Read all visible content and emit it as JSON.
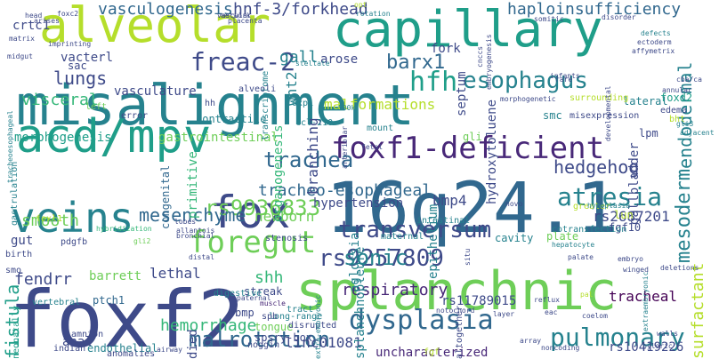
{
  "colors": {
    "background": "#ffffff",
    "palette": [
      "#440154",
      "#482878",
      "#3e4a89",
      "#31688e",
      "#26828e",
      "#1f9e89",
      "#35b779",
      "#6ece58",
      "#b5de2b",
      "#fde725"
    ]
  },
  "words": [
    {
      "text": "misalignment",
      "color": "#26828e",
      "vertical": false
    },
    {
      "text": "16q24.1",
      "color": "#31688e",
      "vertical": false
    },
    {
      "text": "foxf2",
      "color": "#3e4a89",
      "vertical": false
    },
    {
      "text": "splanchnic",
      "color": "#6ece58",
      "vertical": false
    },
    {
      "text": "capillary",
      "color": "#1f9e89",
      "vertical": false
    },
    {
      "text": "alveolar",
      "color": "#b5de2b",
      "vertical": false
    },
    {
      "text": "acd/mpv",
      "color": "#1f9e89",
      "vertical": false
    },
    {
      "text": "veins",
      "color": "#26828e",
      "vertical": false
    },
    {
      "text": "fox",
      "color": "#3e4a89",
      "vertical": false
    },
    {
      "text": "foxf1-deficient",
      "color": "#482878",
      "vertical": false
    },
    {
      "text": "foregut",
      "color": "#6ece58",
      "vertical": false
    },
    {
      "text": "dysplasia",
      "color": "#31688e",
      "vertical": false
    },
    {
      "text": "pulmonary",
      "color": "#26828e",
      "vertical": false
    },
    {
      "text": "transversum",
      "color": "#3e4a89",
      "vertical": false
    },
    {
      "text": "freac-2",
      "color": "#3e4a89",
      "vertical": false
    },
    {
      "text": "hfh",
      "color": "#1f9e89",
      "vertical": false
    },
    {
      "text": "esophagus",
      "color": "#26828e",
      "vertical": false
    },
    {
      "text": "atresia",
      "color": "#26828e",
      "vertical": false
    },
    {
      "text": "rs9257809",
      "color": "#3e4a89",
      "vertical": false
    },
    {
      "text": "malrotation",
      "color": "#31688e",
      "vertical": false
    },
    {
      "text": "sonic",
      "color": "#26828e",
      "vertical": false
    },
    {
      "text": "mesoderm",
      "color": "#26828e",
      "vertical": true
    },
    {
      "text": "rs9936833",
      "color": "#6ece58",
      "vertical": false
    },
    {
      "text": "endodermal",
      "color": "#26828e",
      "vertical": true
    },
    {
      "text": "trachea",
      "color": "#31688e",
      "vertical": false
    },
    {
      "text": "respiratory",
      "color": "#482878",
      "vertical": false
    },
    {
      "text": "mesenchyme",
      "color": "#31688e",
      "vertical": false
    },
    {
      "text": "hedgehog",
      "color": "#3e4a89",
      "vertical": false
    },
    {
      "text": "surfactant",
      "color": "#b5de2b",
      "vertical": true
    },
    {
      "text": "fistula",
      "color": "#1f9e89",
      "vertical": true
    },
    {
      "text": "shh",
      "color": "#35b779",
      "vertical": false
    },
    {
      "text": "barx1",
      "color": "#31688e",
      "vertical": false
    },
    {
      "text": "tracheo-esophageal",
      "color": "#31688e",
      "vertical": false
    },
    {
      "text": "hemorrhage",
      "color": "#35b779",
      "vertical": false
    },
    {
      "text": "lungs",
      "color": "#3e4a89",
      "vertical": false
    },
    {
      "text": "fendrr",
      "color": "#3e4a89",
      "vertical": false
    },
    {
      "text": "hnf-3/forkhead",
      "color": "#3e4a89",
      "vertical": false
    },
    {
      "text": "vasculogenesis",
      "color": "#31688e",
      "vertical": false
    },
    {
      "text": "haploinsufficiency",
      "color": "#31688e",
      "vertical": false
    },
    {
      "text": "vacterl",
      "color": "#3e4a89",
      "vertical": false
    },
    {
      "text": "visceral",
      "color": "#35b779",
      "vertical": false
    },
    {
      "text": "vasculature",
      "color": "#3e4a89",
      "vertical": false
    },
    {
      "text": "gall",
      "color": "#26828e",
      "vertical": false
    },
    {
      "text": "arose",
      "color": "#3e4a89",
      "vertical": false
    },
    {
      "text": "fork",
      "color": "#3e4a89",
      "vertical": false
    },
    {
      "text": "lethal",
      "color": "#3e4a89",
      "vertical": false
    },
    {
      "text": "tracheal",
      "color": "#440154",
      "vertical": false
    },
    {
      "text": "newborn",
      "color": "#6ece58",
      "vertical": false
    },
    {
      "text": "bmp4",
      "color": "#3e4a89",
      "vertical": false
    },
    {
      "text": "hypertension",
      "color": "#3e4a89",
      "vertical": false
    },
    {
      "text": "smooth",
      "color": "#6ece58",
      "vertical": false
    },
    {
      "text": "gut",
      "color": "#3e4a89",
      "vertical": false
    },
    {
      "text": "linc01081",
      "color": "#3e4a89",
      "vertical": false
    },
    {
      "text": "uncharacterized",
      "color": "#482878",
      "vertical": false
    },
    {
      "text": "rs2687201",
      "color": "#3e4a89",
      "vertical": false
    },
    {
      "text": "rs11789015",
      "color": "#3e4a89",
      "vertical": false
    },
    {
      "text": "rs10419226",
      "color": "#3e4a89",
      "vertical": false
    },
    {
      "text": "branching",
      "color": "#3e4a89",
      "vertical": true
    },
    {
      "text": "wnt2",
      "color": "#26828e",
      "vertical": true
    },
    {
      "text": "organogenesis",
      "color": "#35b779",
      "vertical": true
    },
    {
      "text": "malformations",
      "color": "#b5de2b",
      "vertical": false
    },
    {
      "text": "septum",
      "color": "#3e4a89",
      "vertical": true
    },
    {
      "text": "gallbladder",
      "color": "#3e4a89",
      "vertical": true
    },
    {
      "text": "gastrointestinal",
      "color": "#6ece58",
      "vertical": false
    },
    {
      "text": "morphogenesis",
      "color": "#1f9e89",
      "vertical": false
    },
    {
      "text": "crtc1",
      "color": "#3e4a89",
      "vertical": false
    },
    {
      "text": "lateral",
      "color": "#26828e",
      "vertical": false
    },
    {
      "text": "foxd2",
      "color": "#1f9e89",
      "vertical": false
    },
    {
      "text": "lpm",
      "color": "#3e4a89",
      "vertical": false
    },
    {
      "text": "fgf10",
      "color": "#3e4a89",
      "vertical": false
    },
    {
      "text": "sac",
      "color": "#3e4a89",
      "vertical": false
    },
    {
      "text": "primitive",
      "color": "#35b779",
      "vertical": true
    },
    {
      "text": "congenital",
      "color": "#31688e",
      "vertical": true
    },
    {
      "text": "anal",
      "color": "#3e4a89",
      "vertical": false
    },
    {
      "text": "barrett",
      "color": "#6ece58",
      "vertical": false
    },
    {
      "text": "ptch1",
      "color": "#31688e",
      "vertical": false
    },
    {
      "text": "bmp",
      "color": "#3e4a89",
      "vertical": false
    },
    {
      "text": "streak",
      "color": "#3e4a89",
      "vertical": false
    },
    {
      "text": "contractile",
      "color": "#26828e",
      "vertical": false
    },
    {
      "text": "smc",
      "color": "#26828e",
      "vertical": false
    },
    {
      "text": "lun",
      "color": "#b5de2b",
      "vertical": false
    },
    {
      "text": "gli",
      "color": "#6ece58",
      "vertical": false
    },
    {
      "text": "plate",
      "color": "#6ece58",
      "vertical": false
    },
    {
      "text": "cavity",
      "color": "#26828e",
      "vertical": false
    },
    {
      "text": "maternal",
      "color": "#26828e",
      "vertical": false
    },
    {
      "text": "intestinal",
      "color": "#26828e",
      "vertical": false
    },
    {
      "text": "epithelium",
      "color": "#26828e",
      "vertical": true
    },
    {
      "text": "aglossia",
      "color": "#26828e",
      "vertical": true
    },
    {
      "text": "splanchnopleure",
      "color": "#26828e",
      "vertical": true
    },
    {
      "text": "hydroxytoluene",
      "color": "#3e4a89",
      "vertical": true
    },
    {
      "text": "endothelial",
      "color": "#26828e",
      "vertical": false
    },
    {
      "text": "died",
      "color": "#3e4a89",
      "vertical": true
    },
    {
      "text": "spsry-box",
      "color": "#3e4a89",
      "vertical": false
    },
    {
      "text": "tongue",
      "color": "#6ece58",
      "vertical": false
    },
    {
      "text": "noggin",
      "color": "#3e4a89",
      "vertical": false
    },
    {
      "text": "long-range",
      "color": "#26828e",
      "vertical": false
    },
    {
      "text": "disrupted",
      "color": "#3e4a89",
      "vertical": false
    },
    {
      "text": "tract",
      "color": "#26828e",
      "vertical": false
    },
    {
      "text": "muscle",
      "color": "#482878",
      "vertical": false
    },
    {
      "text": "digestive",
      "color": "#26828e",
      "vertical": false
    },
    {
      "text": "paternal",
      "color": "#3e4a89",
      "vertical": false
    },
    {
      "text": "amnion",
      "color": "#3e4a89",
      "vertical": false
    },
    {
      "text": "indian",
      "color": "#3e4a89",
      "vertical": false
    },
    {
      "text": "anomalies",
      "color": "#3e4a89",
      "vertical": false
    },
    {
      "text": "neonatally",
      "color": "#1f9e89",
      "vertical": true
    },
    {
      "text": "vertebral",
      "color": "#26828e",
      "vertical": false
    },
    {
      "text": "smo",
      "color": "#3e4a89",
      "vertical": false
    },
    {
      "text": "birth",
      "color": "#3e4a89",
      "vertical": false
    },
    {
      "text": "foxl1",
      "color": "#b5de2b",
      "vertical": false
    },
    {
      "text": "lobes",
      "color": "#3e4a89",
      "vertical": false
    },
    {
      "text": "bronchial",
      "color": "#3e4a89",
      "vertical": false
    },
    {
      "text": "allantois",
      "color": "#3e4a89",
      "vertical": false
    },
    {
      "text": "hybridization",
      "color": "#35b779",
      "vertical": false
    },
    {
      "text": "stenosis",
      "color": "#3e4a89",
      "vertical": false
    },
    {
      "text": "distal",
      "color": "#3e4a89",
      "vertical": false
    },
    {
      "text": "gli2",
      "color": "#6ece58",
      "vertical": false
    },
    {
      "text": "pdgfb",
      "color": "#3e4a89",
      "vertical": false
    },
    {
      "text": "gastrulation",
      "color": "#26828e",
      "vertical": true
    },
    {
      "text": "tracheoesophageal",
      "color": "#26828e",
      "vertical": true
    },
    {
      "text": "left",
      "color": "#6ece58",
      "vertical": false
    },
    {
      "text": "error",
      "color": "#3e4a89",
      "vertical": false
    },
    {
      "text": "transcriptome",
      "color": "#26828e",
      "vertical": true
    },
    {
      "text": "hh",
      "color": "#3e4a89",
      "vertical": false
    },
    {
      "text": "foxp1",
      "color": "#26828e",
      "vertical": false
    },
    {
      "text": "alveoli",
      "color": "#3e4a89",
      "vertical": false
    },
    {
      "text": "ccl-210",
      "color": "#26828e",
      "vertical": false
    },
    {
      "text": "500k",
      "color": "#26828e",
      "vertical": false
    },
    {
      "text": "arteriolar",
      "color": "#3e4a89",
      "vertical": true
    },
    {
      "text": "mount",
      "color": "#26828e",
      "vertical": false
    },
    {
      "text": "fetal",
      "color": "#3e4a89",
      "vertical": false
    },
    {
      "text": "stellate",
      "color": "#26828e",
      "vertical": false
    },
    {
      "text": "vascular",
      "color": "#3e4a89",
      "vertical": false
    },
    {
      "text": "network",
      "color": "#3e4a89",
      "vertical": false
    },
    {
      "text": "placenta",
      "color": "#3e4a89",
      "vertical": false
    },
    {
      "text": "arises",
      "color": "#3e4a89",
      "vertical": false
    },
    {
      "text": "head",
      "color": "#3e4a89",
      "vertical": false
    },
    {
      "text": "foxc2",
      "color": "#3e4a89",
      "vertical": false
    },
    {
      "text": "matrix",
      "color": "#3e4a89",
      "vertical": false
    },
    {
      "text": "imprinting",
      "color": "#3e4a89",
      "vertical": false
    },
    {
      "text": "midgut",
      "color": "#3e4a89",
      "vertical": false
    },
    {
      "text": "opt",
      "color": "#b5de2b",
      "vertical": false
    },
    {
      "text": "rotation",
      "color": "#26828e",
      "vertical": false
    },
    {
      "text": "cnccs",
      "color": "#3e4a89",
      "vertical": true
    },
    {
      "text": "embryogenesis",
      "color": "#3e4a89",
      "vertical": true
    },
    {
      "text": "somitic",
      "color": "#3e4a89",
      "vertical": false
    },
    {
      "text": "disorder",
      "color": "#3e4a89",
      "vertical": false
    },
    {
      "text": "ectoderm",
      "color": "#3e4a89",
      "vertical": false
    },
    {
      "text": "defects",
      "color": "#26828e",
      "vertical": false
    },
    {
      "text": "affymetrix",
      "color": "#3e4a89",
      "vertical": false
    },
    {
      "text": "annular",
      "color": "#3e4a89",
      "vertical": false
    },
    {
      "text": "infants",
      "color": "#3e4a89",
      "vertical": false
    },
    {
      "text": "rare",
      "color": "#3e4a89",
      "vertical": false
    },
    {
      "text": "morphogenetic",
      "color": "#3e4a89",
      "vertical": false
    },
    {
      "text": "surrounding",
      "color": "#b5de2b",
      "vertical": false
    },
    {
      "text": "misexpression",
      "color": "#3e4a89",
      "vertical": false
    },
    {
      "text": "cba/ca",
      "color": "#3e4a89",
      "vertical": false
    },
    {
      "text": "edema",
      "color": "#3e4a89",
      "vertical": false
    },
    {
      "text": "bht",
      "color": "#b5de2b",
      "vertical": false
    },
    {
      "text": "gli3",
      "color": "#26828e",
      "vertical": false
    },
    {
      "text": "adjacent",
      "color": "#26828e",
      "vertical": false
    },
    {
      "text": "developmental",
      "color": "#3e4a89",
      "vertical": true
    },
    {
      "text": "novo",
      "color": "#3e4a89",
      "vertical": false
    },
    {
      "text": "cotransfection",
      "color": "#26828e",
      "vertical": false
    },
    {
      "text": "greater",
      "color": "#b5de2b",
      "vertical": false
    },
    {
      "text": "hypoplasia",
      "color": "#26828e",
      "vertical": false
    },
    {
      "text": "hepatocyte",
      "color": "#26828e",
      "vertical": false
    },
    {
      "text": "palate",
      "color": "#3e4a89",
      "vertical": false
    },
    {
      "text": "embryo",
      "color": "#3e4a89",
      "vertical": false
    },
    {
      "text": "winged",
      "color": "#3e4a89",
      "vertical": false
    },
    {
      "text": "extraembryonic",
      "color": "#26828e",
      "vertical": true
    },
    {
      "text": "deletions",
      "color": "#3e4a89",
      "vertical": false
    },
    {
      "text": "coelom",
      "color": "#3e4a89",
      "vertical": false
    },
    {
      "text": "reflux",
      "color": "#3e4a89",
      "vertical": false
    },
    {
      "text": "layer",
      "color": "#3e4a89",
      "vertical": false
    },
    {
      "text": "eac",
      "color": "#3e4a89",
      "vertical": false
    },
    {
      "text": "pal",
      "color": "#b5de2b",
      "vertical": false
    },
    {
      "text": "noncoding",
      "color": "#3e4a89",
      "vertical": false
    },
    {
      "text": "array",
      "color": "#3e4a89",
      "vertical": false
    },
    {
      "text": "pyloric",
      "color": "#3e4a89",
      "vertical": false
    },
    {
      "text": "walls",
      "color": "#3e4a89",
      "vertical": false
    },
    {
      "text": "notochord",
      "color": "#3e4a89",
      "vertical": false
    },
    {
      "text": "situ",
      "color": "#3e4a89",
      "vertical": true
    },
    {
      "text": "fgf",
      "color": "#b5de2b",
      "vertical": false
    },
    {
      "text": "altogether",
      "color": "#3e4a89",
      "vertical": true
    },
    {
      "text": "spb",
      "color": "#3e4a89",
      "vertical": false
    },
    {
      "text": "extra-embryonic",
      "color": "#26828e",
      "vertical": true
    },
    {
      "text": "airway",
      "color": "#3e4a89",
      "vertical": false
    },
    {
      "text": "diminished",
      "color": "#6ece58",
      "vertical": false
    }
  ]
}
